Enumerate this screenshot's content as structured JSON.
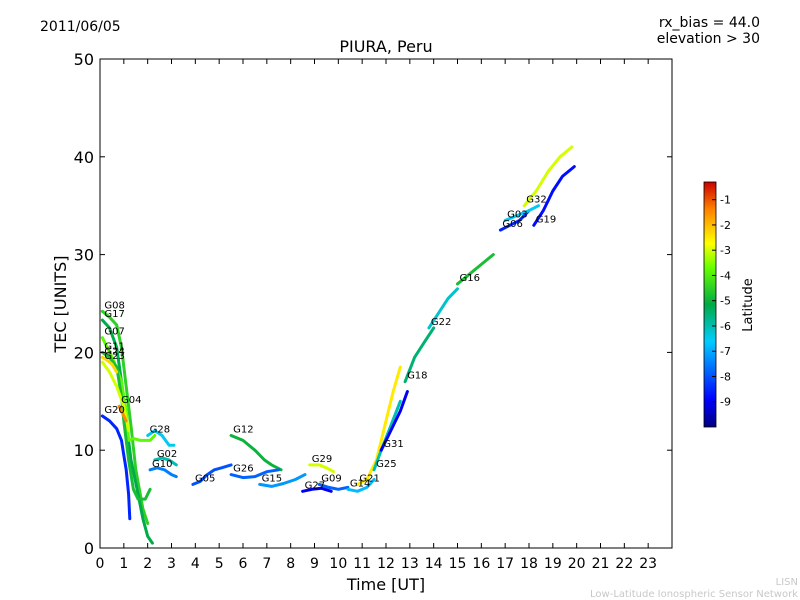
{
  "header": {
    "date": "2011/06/05",
    "rx_bias": "rx_bias = 44.0",
    "elevation": "elevation > 30"
  },
  "credit": {
    "line1": "LISN",
    "line2": "Low-Latitude Ionospheric Sensor Network"
  },
  "chart_data": {
    "type": "scatter",
    "title": "PIURA, Peru",
    "xlabel": "Time [UT]",
    "ylabel": "TEC [UNITS]",
    "xlim": [
      0,
      24
    ],
    "ylim": [
      0,
      50
    ],
    "xticks": [
      "0",
      "1",
      "2",
      "3",
      "4",
      "5",
      "6",
      "7",
      "8",
      "9",
      "10",
      "11",
      "12",
      "13",
      "14",
      "15",
      "16",
      "17",
      "18",
      "19",
      "20",
      "21",
      "22",
      "23"
    ],
    "yticks": [
      "0",
      "10",
      "20",
      "30",
      "40",
      "50"
    ],
    "grid": false,
    "colorbar": {
      "label": "Latitude",
      "range": [
        -10,
        -0.3
      ],
      "ticks": [
        "-1",
        "-2",
        "-3",
        "-4",
        "-5",
        "-6",
        "-7",
        "-8",
        "-9"
      ],
      "colormap": "jet"
    },
    "series": [
      {
        "name": "G08",
        "points": [
          [
            0.1,
            24.2
          ],
          [
            0.4,
            23.6
          ],
          [
            0.7,
            22.8
          ],
          [
            0.9,
            20.5
          ],
          [
            1.1,
            16.5
          ],
          [
            1.3,
            12.5
          ],
          [
            1.5,
            8.0
          ],
          [
            1.8,
            4.0
          ],
          [
            2.0,
            2.5
          ]
        ],
        "lat": -4.5
      },
      {
        "name": "G17",
        "points": [
          [
            0.1,
            23.3
          ],
          [
            0.4,
            22.5
          ],
          [
            0.7,
            20.5
          ],
          [
            0.9,
            17.0
          ],
          [
            1.1,
            13.0
          ],
          [
            1.3,
            9.0
          ],
          [
            1.6,
            5.5
          ],
          [
            1.8,
            3.0
          ],
          [
            2.0,
            1.2
          ],
          [
            2.2,
            0.5
          ]
        ],
        "lat": -5.2
      },
      {
        "name": "G07",
        "points": [
          [
            0.1,
            21.5
          ],
          [
            0.3,
            20.5
          ],
          [
            0.6,
            19.0
          ],
          [
            0.9,
            17.0
          ],
          [
            1.1,
            14.0
          ],
          [
            1.2,
            11.0
          ],
          [
            1.4,
            11.2
          ],
          [
            1.7,
            11.0
          ],
          [
            2.1,
            11.0
          ],
          [
            2.3,
            11.5
          ]
        ],
        "lat": -3.8
      },
      {
        "name": "G11",
        "points": [
          [
            0.1,
            20.0
          ],
          [
            0.4,
            19.5
          ],
          [
            0.7,
            18.5
          ],
          [
            0.9,
            15.5
          ],
          [
            1.0,
            13.0
          ],
          [
            1.2,
            9.0
          ],
          [
            1.4,
            6.0
          ],
          [
            1.6,
            5.0
          ],
          [
            1.9,
            5.0
          ],
          [
            2.1,
            6.0
          ]
        ],
        "lat": -4.8
      },
      {
        "name": "G24",
        "points": [
          [
            0.1,
            19.5
          ],
          [
            0.3,
            19.2
          ],
          [
            0.5,
            18.8
          ],
          [
            0.7,
            18.0
          ]
        ],
        "lat": -2.3
      },
      {
        "name": "G23",
        "points": [
          [
            0.1,
            19.0
          ],
          [
            0.4,
            18.0
          ],
          [
            0.7,
            16.5
          ],
          [
            1.0,
            14.5
          ],
          [
            1.2,
            12.0
          ]
        ],
        "lat": -3.0
      },
      {
        "name": "G20",
        "points": [
          [
            0.1,
            13.5
          ],
          [
            0.4,
            13.0
          ],
          [
            0.7,
            12.2
          ],
          [
            0.9,
            11.0
          ],
          [
            1.0,
            9.5
          ],
          [
            1.1,
            8.0
          ],
          [
            1.2,
            5.5
          ],
          [
            1.25,
            3.0
          ]
        ],
        "lat": -8.5
      },
      {
        "name": "G04",
        "points": [
          [
            0.8,
            14.5
          ],
          [
            0.9,
            14.0
          ],
          [
            1.0,
            13.5
          ],
          [
            1.1,
            13.0
          ]
        ],
        "lat": -1.5
      },
      {
        "name": "G28",
        "points": [
          [
            2.0,
            11.5
          ],
          [
            2.3,
            12.0
          ],
          [
            2.6,
            11.5
          ],
          [
            2.9,
            10.5
          ],
          [
            3.1,
            10.5
          ]
        ],
        "lat": -6.5
      },
      {
        "name": "G02",
        "points": [
          [
            2.3,
            9.0
          ],
          [
            2.6,
            9.2
          ],
          [
            2.9,
            9.0
          ],
          [
            3.2,
            8.5
          ]
        ],
        "lat": -6.0
      },
      {
        "name": "G10",
        "points": [
          [
            2.1,
            8.0
          ],
          [
            2.4,
            8.2
          ],
          [
            2.7,
            8.0
          ],
          [
            3.0,
            7.5
          ],
          [
            3.2,
            7.3
          ]
        ],
        "lat": -7.5
      },
      {
        "name": "G05",
        "points": [
          [
            3.9,
            6.5
          ],
          [
            4.2,
            6.8
          ],
          [
            4.5,
            7.5
          ],
          [
            4.8,
            8.0
          ],
          [
            5.1,
            8.2
          ],
          [
            5.5,
            8.5
          ]
        ],
        "lat": -8.0
      },
      {
        "name": "G12",
        "points": [
          [
            5.5,
            11.5
          ],
          [
            6.0,
            11.0
          ],
          [
            6.5,
            10.0
          ],
          [
            6.9,
            9.0
          ],
          [
            7.2,
            8.5
          ],
          [
            7.6,
            8.0
          ]
        ],
        "lat": -5.0
      },
      {
        "name": "G26",
        "points": [
          [
            5.5,
            7.5
          ],
          [
            6.0,
            7.2
          ],
          [
            6.5,
            7.3
          ],
          [
            7.0,
            7.8
          ],
          [
            7.5,
            8.0
          ]
        ],
        "lat": -7.8
      },
      {
        "name": "G15",
        "points": [
          [
            6.7,
            6.5
          ],
          [
            7.2,
            6.3
          ],
          [
            7.7,
            6.6
          ],
          [
            8.2,
            7.0
          ],
          [
            8.6,
            7.5
          ]
        ],
        "lat": -7.2
      },
      {
        "name": "G29",
        "points": [
          [
            8.8,
            8.5
          ],
          [
            9.2,
            8.5
          ],
          [
            9.5,
            8.2
          ],
          [
            9.8,
            7.8
          ]
        ],
        "lat": -3.0
      },
      {
        "name": "G27",
        "points": [
          [
            8.5,
            5.8
          ],
          [
            8.9,
            6.0
          ],
          [
            9.3,
            6.1
          ],
          [
            9.7,
            5.8
          ]
        ],
        "lat": -9.0
      },
      {
        "name": "G09",
        "points": [
          [
            9.2,
            6.5
          ],
          [
            9.6,
            6.2
          ],
          [
            10.0,
            6.0
          ],
          [
            10.4,
            6.2
          ]
        ],
        "lat": -7.8
      },
      {
        "name": "G21",
        "points": [
          [
            10.8,
            6.5
          ],
          [
            11.2,
            7.0
          ],
          [
            11.6,
            9.0
          ],
          [
            12.0,
            13.0
          ],
          [
            12.3,
            16.0
          ],
          [
            12.6,
            18.5
          ]
        ],
        "lat": -2.5
      },
      {
        "name": "G14",
        "points": [
          [
            10.4,
            6.0
          ],
          [
            10.8,
            5.8
          ],
          [
            11.2,
            6.2
          ],
          [
            11.5,
            7.0
          ]
        ],
        "lat": -6.8
      },
      {
        "name": "G25",
        "points": [
          [
            11.5,
            8.0
          ],
          [
            11.8,
            10.0
          ],
          [
            12.2,
            12.5
          ],
          [
            12.6,
            15.0
          ]
        ],
        "lat": -6.0
      },
      {
        "name": "G31",
        "points": [
          [
            11.8,
            10.0
          ],
          [
            12.2,
            12.0
          ],
          [
            12.6,
            14.0
          ],
          [
            12.9,
            16.0
          ]
        ],
        "lat": -9.0
      },
      {
        "name": "G18",
        "points": [
          [
            12.8,
            17.0
          ],
          [
            13.2,
            19.5
          ],
          [
            13.6,
            21.0
          ],
          [
            14.0,
            22.5
          ]
        ],
        "lat": -5.5
      },
      {
        "name": "G22",
        "points": [
          [
            13.8,
            22.5
          ],
          [
            14.2,
            24.0
          ],
          [
            14.6,
            25.5
          ],
          [
            15.0,
            26.5
          ]
        ],
        "lat": -6.2
      },
      {
        "name": "G16",
        "points": [
          [
            15.0,
            27.0
          ],
          [
            15.5,
            28.0
          ],
          [
            16.0,
            29.0
          ],
          [
            16.5,
            30.0
          ]
        ],
        "lat": -4.8
      },
      {
        "name": "G06",
        "points": [
          [
            16.8,
            32.5
          ],
          [
            17.2,
            33.0
          ],
          [
            17.6,
            33.5
          ],
          [
            18.0,
            34.5
          ]
        ],
        "lat": -8.5
      },
      {
        "name": "G03",
        "points": [
          [
            17.0,
            33.5
          ],
          [
            17.5,
            34.0
          ],
          [
            18.0,
            34.5
          ],
          [
            18.4,
            35.0
          ]
        ],
        "lat": -6.5
      },
      {
        "name": "G32",
        "points": [
          [
            17.8,
            35.0
          ],
          [
            18.3,
            36.5
          ],
          [
            18.8,
            38.5
          ],
          [
            19.3,
            40.0
          ],
          [
            19.8,
            41.0
          ]
        ],
        "lat": -3.0
      },
      {
        "name": "G19",
        "points": [
          [
            18.2,
            33.0
          ],
          [
            18.6,
            34.5
          ],
          [
            19.0,
            36.5
          ],
          [
            19.4,
            38.0
          ],
          [
            19.9,
            39.0
          ]
        ],
        "lat": -8.8
      }
    ]
  }
}
